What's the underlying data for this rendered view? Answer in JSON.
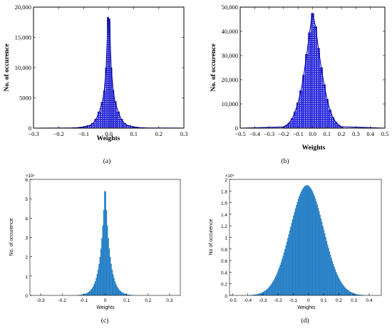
{
  "colors": {
    "panel_ab_bar_fill": "#2c2cf0",
    "panel_ab_bar_stroke": "#111166",
    "panel_ab_curve": "#0000aa",
    "panel_cd_bar_fill": "#1f7bc4",
    "axis": "#000000",
    "background": "#ffffff"
  },
  "chart_data": [
    {
      "panel_label": "(a)",
      "type": "bar",
      "style": "blue hatched histogram with fitted curve",
      "xlabel": "Weights",
      "ylabel": "No. of occurence",
      "xlim": [
        -0.3,
        0.3
      ],
      "ylim": [
        0,
        20000
      ],
      "xticks": [
        -0.3,
        -0.2,
        -0.1,
        0.0,
        0.1,
        0.2,
        0.3
      ],
      "xtick_labels": [
        "−0.3",
        "−0.2",
        "−0.1",
        "0.0",
        "0.1",
        "0.2",
        "0.3"
      ],
      "yticks": [
        0,
        5000,
        10000,
        15000,
        20000
      ],
      "ytick_labels": [
        "0",
        "5000",
        "10,000",
        "15,000",
        "20,000"
      ],
      "grid": false,
      "bins": {
        "x": [
          -0.15,
          -0.125,
          -0.1,
          -0.075,
          -0.0625,
          -0.05,
          -0.0375,
          -0.025,
          -0.0175,
          -0.01,
          -0.0025,
          0.0025,
          0.01,
          0.0175,
          0.025,
          0.0375,
          0.05,
          0.0625,
          0.075,
          0.1,
          0.125,
          0.15
        ],
        "values": [
          30,
          80,
          200,
          450,
          800,
          1500,
          2700,
          4300,
          6200,
          10000,
          18300,
          18000,
          10000,
          6300,
          4400,
          2700,
          1500,
          800,
          450,
          200,
          80,
          30
        ]
      }
    },
    {
      "panel_label": "(b)",
      "type": "bar",
      "style": "blue hatched histogram with fitted curve",
      "xlabel": "Weights",
      "ylabel": "No. of occurence",
      "xlim": [
        -0.5,
        0.5
      ],
      "ylim": [
        0,
        50000
      ],
      "xticks": [
        -0.5,
        -0.4,
        -0.3,
        -0.2,
        -0.1,
        0.0,
        0.1,
        0.2,
        0.3,
        0.4,
        0.5
      ],
      "xtick_labels": [
        "−0.5",
        "−0.4",
        "−0.3",
        "−0.2",
        "−0.1",
        "0.0",
        "0.1",
        "0.2",
        "0.3",
        "0.4",
        "0.5"
      ],
      "yticks": [
        0,
        10000,
        20000,
        30000,
        40000,
        50000
      ],
      "ytick_labels": [
        "0",
        "10,000",
        "20,000",
        "30,000",
        "40,000",
        "50,000"
      ],
      "grid": false,
      "bins": {
        "x": [
          -0.2,
          -0.18,
          -0.16,
          -0.14,
          -0.12,
          -0.1,
          -0.08,
          -0.06,
          -0.04,
          -0.02,
          0.0,
          0.02,
          0.04,
          0.06,
          0.08,
          0.1,
          0.12,
          0.14,
          0.16,
          0.18,
          0.2
        ],
        "values": [
          500,
          1200,
          2200,
          4000,
          6800,
          10500,
          15500,
          22000,
          30500,
          39500,
          47500,
          42000,
          33000,
          25000,
          18000,
          12000,
          7500,
          4500,
          2500,
          1300,
          600
        ]
      }
    },
    {
      "panel_label": "(c)",
      "type": "bar",
      "style": "solid blue histogram",
      "xlabel": "Weights",
      "ylabel": "No. of occurence",
      "y_exponent_label": "×10⁴",
      "xlim": [
        -0.35,
        0.35
      ],
      "ylim": [
        0,
        6
      ],
      "xticks": [
        -0.3,
        -0.2,
        -0.1,
        0.0,
        0.1,
        0.2,
        0.3
      ],
      "xtick_labels": [
        "-0.3",
        "-0.2",
        "-0.1",
        "0",
        "0.1",
        "0.2",
        "0.3"
      ],
      "yticks": [
        0,
        1,
        2,
        3,
        4,
        5,
        6
      ],
      "ytick_labels": [
        "0",
        "1",
        "2",
        "3",
        "4",
        "5",
        "6"
      ],
      "grid": false,
      "peak": {
        "x": 0.0,
        "value": 5.95
      },
      "shape": "sharp laplace-like peak, decay scale ≈ 0.022"
    },
    {
      "panel_label": "(d)",
      "type": "bar",
      "style": "solid blue histogram",
      "xlabel": "Weights",
      "ylabel": "No of occurence",
      "y_exponent_label": "×10⁴",
      "xlim": [
        -0.52,
        0.48
      ],
      "ylim": [
        0,
        2
      ],
      "xticks": [
        -0.5,
        -0.4,
        -0.3,
        -0.2,
        -0.1,
        0.0,
        0.1,
        0.2,
        0.3,
        0.4
      ],
      "xtick_labels": [
        "-0.5",
        "-0.4",
        "-0.3",
        "-0.2",
        "-0.1",
        "0",
        "0.1",
        "0.2",
        "0.3",
        "0.4"
      ],
      "yticks": [
        0,
        0.2,
        0.4,
        0.6,
        0.8,
        1.0,
        1.2,
        1.4,
        1.6,
        1.8,
        2.0
      ],
      "ytick_labels": [
        "0",
        "0.2",
        "0.4",
        "0.6",
        "0.8",
        "1",
        "1.2",
        "1.4",
        "1.6",
        "1.8",
        "2"
      ],
      "grid": false,
      "peak": {
        "x": -0.01,
        "value": 1.9
      },
      "shape": "gaussian-like, sigma ≈ 0.11"
    }
  ]
}
